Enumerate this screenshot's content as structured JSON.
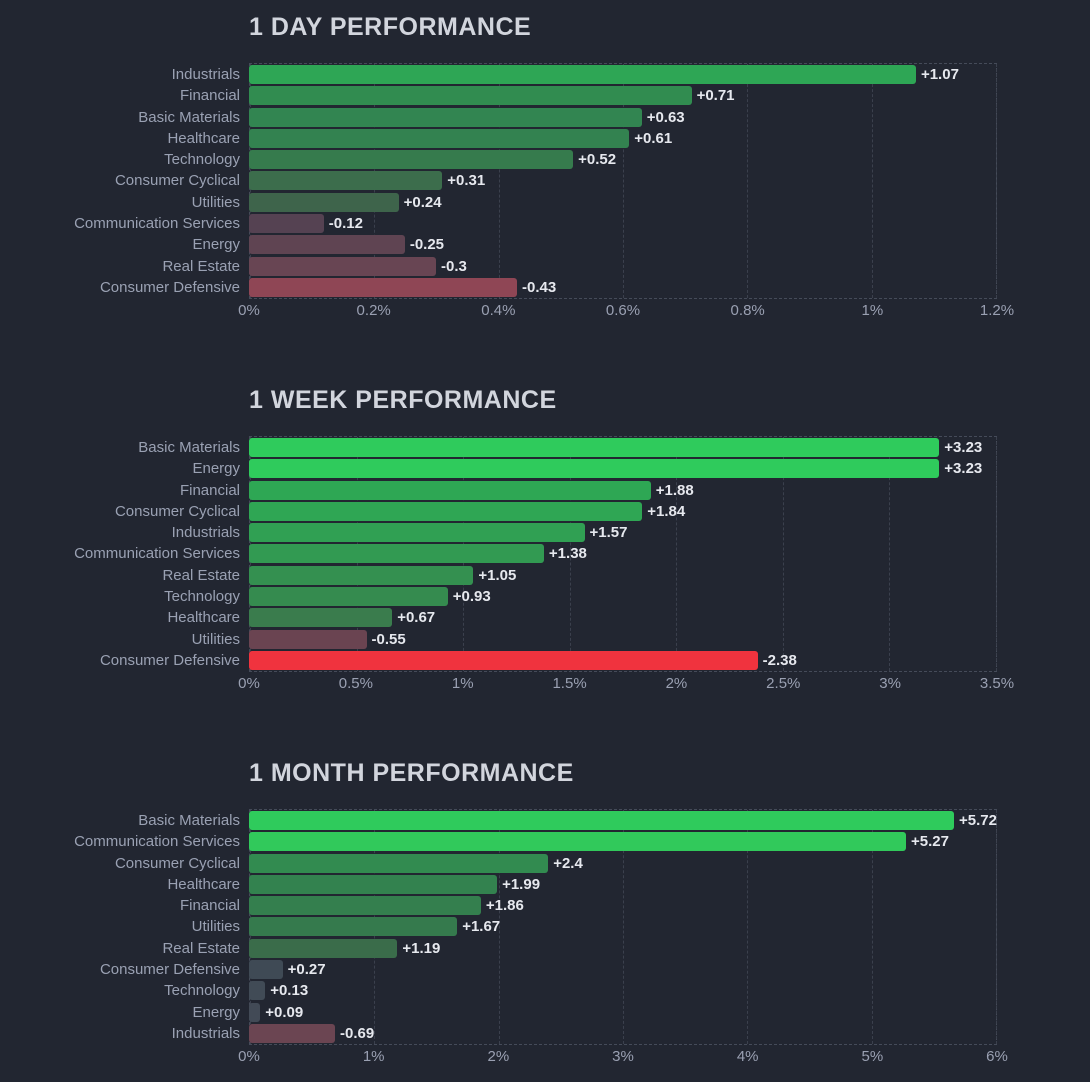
{
  "theme": {
    "background": "#222631",
    "title_color": "#d2d5dd",
    "category_label_color": "#9aa1b3",
    "value_label_color": "#e6e8ee",
    "axis_label_color": "#9aa0b2",
    "gridline_color": "#3b404d",
    "plot_border_color": "#454b59",
    "positive_strong_color": "#2fcb5c",
    "positive_mid_color": "#2ea655",
    "neutral_color": "#3f4a55",
    "negative_mild_color": "#6b4552",
    "negative_strong_color": "#f0333e"
  },
  "chart_data": [
    {
      "type": "bar",
      "orientation": "horizontal",
      "title": "1 DAY PERFORMANCE",
      "xlabel": "",
      "ylabel": "",
      "unit": "%",
      "grid": true,
      "xlim": [
        0,
        1.2
      ],
      "xticks": [
        {
          "label": "0%",
          "value": 0
        },
        {
          "label": "0.2%",
          "value": 0.2
        },
        {
          "label": "0.4%",
          "value": 0.4
        },
        {
          "label": "0.6%",
          "value": 0.6
        },
        {
          "label": "0.8%",
          "value": 0.8
        },
        {
          "label": "1%",
          "value": 1.0
        },
        {
          "label": "1.2%",
          "value": 1.2
        }
      ],
      "bars": [
        {
          "label": "Industrials",
          "value": 1.07,
          "display": "+1.07",
          "color": "#2ea655"
        },
        {
          "label": "Financial",
          "value": 0.71,
          "display": "+0.71",
          "color": "#318c50"
        },
        {
          "label": "Basic Materials",
          "value": 0.63,
          "display": "+0.63",
          "color": "#328551"
        },
        {
          "label": "Healthcare",
          "value": 0.61,
          "display": "+0.61",
          "color": "#338250"
        },
        {
          "label": "Technology",
          "value": 0.52,
          "display": "+0.52",
          "color": "#367b4d"
        },
        {
          "label": "Consumer Cyclical",
          "value": 0.31,
          "display": "+0.31",
          "color": "#3c6d4c"
        },
        {
          "label": "Utilities",
          "value": 0.24,
          "display": "+0.24",
          "color": "#3e644b"
        },
        {
          "label": "Communication Services",
          "value": -0.12,
          "display": "-0.12",
          "color": "#554252"
        },
        {
          "label": "Energy",
          "value": -0.25,
          "display": "-0.25",
          "color": "#5f4452"
        },
        {
          "label": "Real Estate",
          "value": -0.3,
          "display": "-0.3",
          "color": "#684553"
        },
        {
          "label": "Consumer Defensive",
          "value": -0.43,
          "display": "-0.43",
          "color": "#8f4655"
        }
      ]
    },
    {
      "type": "bar",
      "orientation": "horizontal",
      "title": "1 WEEK PERFORMANCE",
      "xlabel": "",
      "ylabel": "",
      "unit": "%",
      "grid": true,
      "xlim": [
        0,
        3.5
      ],
      "xticks": [
        {
          "label": "0%",
          "value": 0
        },
        {
          "label": "0.5%",
          "value": 0.5
        },
        {
          "label": "1%",
          "value": 1.0
        },
        {
          "label": "1.5%",
          "value": 1.5
        },
        {
          "label": "2%",
          "value": 2.0
        },
        {
          "label": "2.5%",
          "value": 2.5
        },
        {
          "label": "3%",
          "value": 3.0
        },
        {
          "label": "3.5%",
          "value": 3.5
        }
      ],
      "bars": [
        {
          "label": "Basic Materials",
          "value": 3.23,
          "display": "+3.23",
          "color": "#2fcb5c"
        },
        {
          "label": "Energy",
          "value": 3.23,
          "display": "+3.23",
          "color": "#2fcb5c"
        },
        {
          "label": "Financial",
          "value": 1.88,
          "display": "+1.88",
          "color": "#2ea754"
        },
        {
          "label": "Consumer Cyclical",
          "value": 1.84,
          "display": "+1.84",
          "color": "#2fa654"
        },
        {
          "label": "Industrials",
          "value": 1.57,
          "display": "+1.57",
          "color": "#30a053"
        },
        {
          "label": "Communication Services",
          "value": 1.38,
          "display": "+1.38",
          "color": "#329a52"
        },
        {
          "label": "Real Estate",
          "value": 1.05,
          "display": "+1.05",
          "color": "#349050"
        },
        {
          "label": "Technology",
          "value": 0.93,
          "display": "+0.93",
          "color": "#358b4f"
        },
        {
          "label": "Healthcare",
          "value": 0.67,
          "display": "+0.67",
          "color": "#3a7c4d"
        },
        {
          "label": "Utilities",
          "value": -0.55,
          "display": "-0.55",
          "color": "#6a4451"
        },
        {
          "label": "Consumer Defensive",
          "value": -2.38,
          "display": "-2.38",
          "color": "#f0333e"
        }
      ]
    },
    {
      "type": "bar",
      "orientation": "horizontal",
      "title": "1 MONTH PERFORMANCE",
      "xlabel": "",
      "ylabel": "",
      "unit": "%",
      "grid": true,
      "xlim": [
        0,
        6
      ],
      "xticks": [
        {
          "label": "0%",
          "value": 0
        },
        {
          "label": "1%",
          "value": 1
        },
        {
          "label": "2%",
          "value": 2
        },
        {
          "label": "3%",
          "value": 3
        },
        {
          "label": "4%",
          "value": 4
        },
        {
          "label": "5%",
          "value": 5
        },
        {
          "label": "6%",
          "value": 6
        }
      ],
      "bars": [
        {
          "label": "Basic Materials",
          "value": 5.72,
          "display": "+5.72",
          "color": "#2fcb5c"
        },
        {
          "label": "Communication Services",
          "value": 5.27,
          "display": "+5.27",
          "color": "#31c95b"
        },
        {
          "label": "Consumer Cyclical",
          "value": 2.4,
          "display": "+2.4",
          "color": "#328b50"
        },
        {
          "label": "Healthcare",
          "value": 1.99,
          "display": "+1.99",
          "color": "#33824f"
        },
        {
          "label": "Financial",
          "value": 1.86,
          "display": "+1.86",
          "color": "#347f4e"
        },
        {
          "label": "Utilities",
          "value": 1.67,
          "display": "+1.67",
          "color": "#357a4d"
        },
        {
          "label": "Real Estate",
          "value": 1.19,
          "display": "+1.19",
          "color": "#3a6c4a"
        },
        {
          "label": "Consumer Defensive",
          "value": 0.27,
          "display": "+0.27",
          "color": "#3f4a55"
        },
        {
          "label": "Technology",
          "value": 0.13,
          "display": "+0.13",
          "color": "#414b56"
        },
        {
          "label": "Energy",
          "value": 0.09,
          "display": "+0.09",
          "color": "#424a56"
        },
        {
          "label": "Industrials",
          "value": -0.69,
          "display": "-0.69",
          "color": "#6b4552"
        }
      ]
    }
  ]
}
